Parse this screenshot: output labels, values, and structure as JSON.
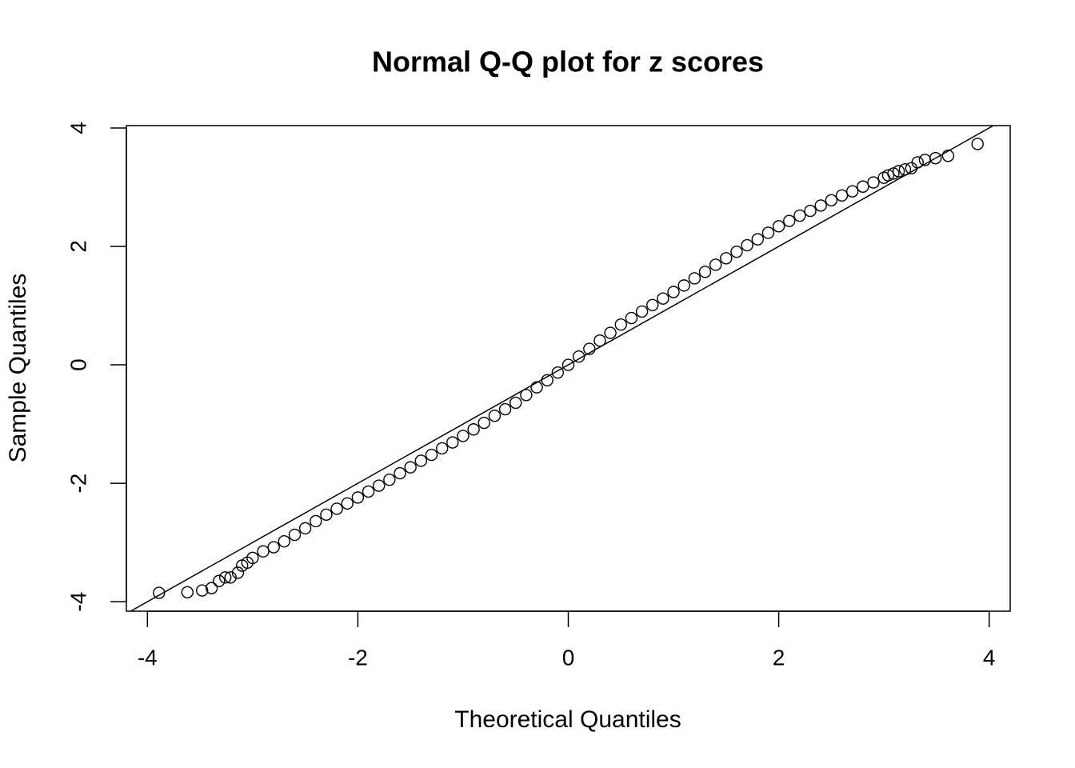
{
  "chart_data": {
    "type": "scatter",
    "title": "Normal Q-Q plot for z scores",
    "xlabel": "Theoretical Quantiles",
    "ylabel": "Sample Quantiles",
    "xlim": [
      -4.2,
      4.2
    ],
    "ylim": [
      -4.16,
      4.04
    ],
    "xticks": [
      -4,
      -2,
      0,
      2,
      4
    ],
    "yticks": [
      -4,
      -2,
      0,
      2,
      4
    ],
    "color": "#000000",
    "reference_line": {
      "intercept": 0,
      "slope": 1
    },
    "x": [
      -3.89,
      -3.62,
      -3.48,
      -3.39,
      -3.32,
      -3.26,
      -3.21,
      -3.14,
      -3.1,
      -3.05,
      -3.0,
      -2.9,
      -2.8,
      -2.7,
      -2.6,
      -2.5,
      -2.4,
      -2.3,
      -2.2,
      -2.1,
      -2.0,
      -1.9,
      -1.8,
      -1.7,
      -1.6,
      -1.5,
      -1.4,
      -1.3,
      -1.2,
      -1.1,
      -1.0,
      -0.9,
      -0.8,
      -0.7,
      -0.6,
      -0.5,
      -0.4,
      -0.3,
      -0.2,
      -0.1,
      0,
      0.1,
      0.2,
      0.3,
      0.4,
      0.5,
      0.6,
      0.7,
      0.8,
      0.9,
      1.0,
      1.1,
      1.2,
      1.3,
      1.4,
      1.5,
      1.6,
      1.7,
      1.8,
      1.9,
      2.0,
      2.1,
      2.2,
      2.3,
      2.4,
      2.5,
      2.6,
      2.7,
      2.8,
      2.9,
      3.0,
      3.04,
      3.09,
      3.14,
      3.2,
      3.26,
      3.32,
      3.39,
      3.49,
      3.61,
      3.89
    ],
    "y": [
      -3.85,
      -3.84,
      -3.81,
      -3.77,
      -3.65,
      -3.59,
      -3.59,
      -3.51,
      -3.39,
      -3.34,
      -3.26,
      -3.15,
      -3.08,
      -2.98,
      -2.87,
      -2.76,
      -2.64,
      -2.53,
      -2.43,
      -2.34,
      -2.24,
      -2.14,
      -2.04,
      -1.94,
      -1.83,
      -1.73,
      -1.62,
      -1.52,
      -1.41,
      -1.31,
      -1.2,
      -1.09,
      -0.98,
      -0.86,
      -0.75,
      -0.64,
      -0.51,
      -0.38,
      -0.26,
      -0.13,
      0,
      0.14,
      0.27,
      0.41,
      0.54,
      0.68,
      0.79,
      0.9,
      1.01,
      1.12,
      1.23,
      1.34,
      1.46,
      1.57,
      1.69,
      1.8,
      1.91,
      2.02,
      2.12,
      2.23,
      2.34,
      2.43,
      2.52,
      2.6,
      2.69,
      2.78,
      2.86,
      2.93,
      3.01,
      3.08,
      3.16,
      3.2,
      3.23,
      3.27,
      3.3,
      3.32,
      3.42,
      3.46,
      3.49,
      3.53,
      3.73
    ]
  }
}
